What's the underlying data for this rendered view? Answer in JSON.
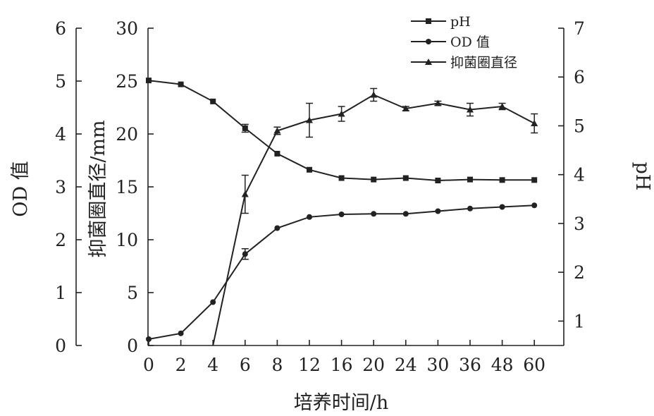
{
  "chart_data": {
    "type": "line",
    "xlabel": "培养时间/h",
    "categories": [
      "0",
      "2",
      "4",
      "6",
      "8",
      "12",
      "16",
      "20",
      "24",
      "30",
      "36",
      "48",
      "60"
    ],
    "axes": {
      "left_outer": {
        "label": "OD 值",
        "range": [
          0,
          6
        ],
        "ticks": [
          "0",
          "1",
          "2",
          "3",
          "4",
          "5",
          "6"
        ]
      },
      "left_inner": {
        "label": "抑菌圈直径/mm",
        "range": [
          0,
          30
        ],
        "ticks": [
          "0",
          "5",
          "10",
          "15",
          "20",
          "25",
          "30"
        ]
      },
      "right": {
        "label": "pH",
        "range": [
          0.5,
          7
        ],
        "ticks": [
          "1",
          "2",
          "3",
          "4",
          "5",
          "6",
          "7"
        ]
      }
    },
    "legend": {
      "position": "top-right",
      "entries": [
        "pH",
        "OD 值",
        "抑菌圈直径"
      ]
    },
    "series": [
      {
        "name": "pH",
        "axis": "right",
        "marker": "square",
        "values": [
          5.93,
          5.85,
          5.5,
          4.95,
          4.43,
          4.1,
          3.93,
          3.9,
          3.93,
          3.88,
          3.9,
          3.89,
          3.89
        ]
      },
      {
        "name": "OD 值",
        "axis": "left_outer",
        "marker": "dot",
        "values": [
          0.12,
          0.23,
          0.82,
          1.73,
          2.22,
          2.43,
          2.48,
          2.49,
          2.49,
          2.54,
          2.59,
          2.62,
          2.65
        ],
        "error": [
          0,
          0,
          0,
          0.1,
          0,
          0,
          0,
          0,
          0,
          0,
          0,
          0,
          0
        ]
      },
      {
        "name": "抑菌圈直径",
        "axis": "left_inner",
        "marker": "triangle",
        "values": [
          null,
          null,
          0,
          14.3,
          20.3,
          21.3,
          21.9,
          23.7,
          22.4,
          22.9,
          22.3,
          22.6,
          21
        ]
      }
    ]
  },
  "colors": {
    "ink": "#222222",
    "background": "#ffffff"
  }
}
